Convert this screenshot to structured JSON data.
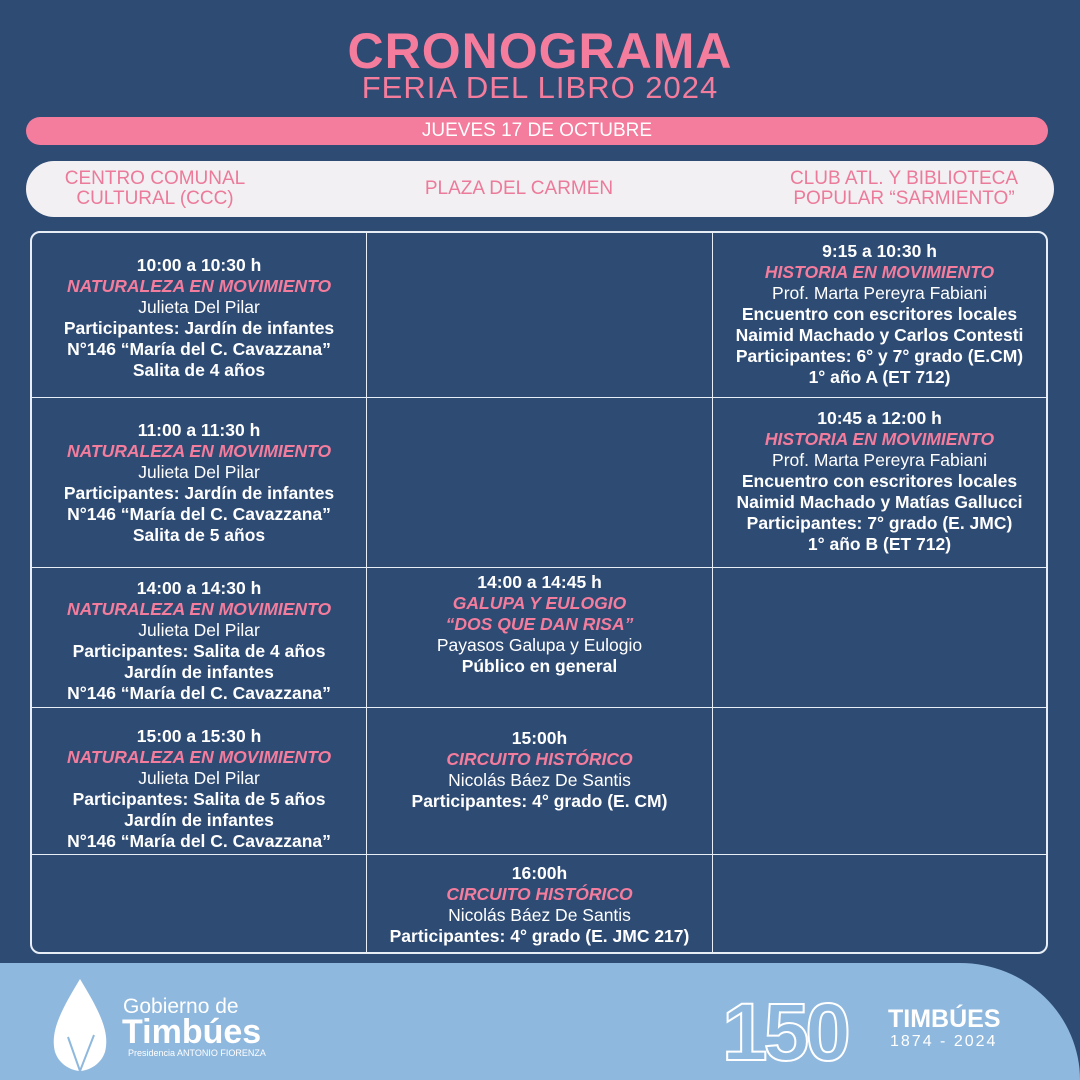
{
  "header": {
    "title": "CRONOGRAMA",
    "subtitle": "FERIA DEL LIBRO 2024",
    "day": "JUEVES 17 DE OCTUBRE"
  },
  "colors": {
    "background": "#2e4b74",
    "accent": "#f47c9c",
    "footer": "#8fb8de"
  },
  "venues": [
    [
      "CENTRO COMUNAL",
      "CULTURAL (CCC)"
    ],
    [
      "PLAZA DEL CARMEN"
    ],
    [
      "CLUB ATL. Y BIBLIOTECA",
      "POPULAR “SARMIENTO”"
    ]
  ],
  "rows": [
    [
      {
        "time": "10:00 a 10:30 h",
        "event": [
          "NATURALEZA EN MOVIMIENTO"
        ],
        "lines": [
          "Julieta Del Pilar"
        ],
        "bold": [
          "Participantes: Jardín de infantes",
          "N°146 “María del C. Cavazzana”",
          "Salita de 4 años"
        ]
      },
      null,
      {
        "time": "9:15 a 10:30 h",
        "event": [
          "HISTORIA EN MOVIMIENTO"
        ],
        "lines": [
          "Prof. Marta Pereyra Fabiani"
        ],
        "bold": [
          "Encuentro con escritores locales",
          "Naimid Machado y Carlos Contesti",
          "Participantes: 6° y 7° grado (E.CM)",
          "1° año A (ET 712)"
        ]
      }
    ],
    [
      {
        "time": "11:00 a 11:30 h",
        "event": [
          "NATURALEZA EN MOVIMIENTO"
        ],
        "lines": [
          "Julieta Del Pilar"
        ],
        "bold": [
          "Participantes: Jardín de infantes",
          "N°146 “María del C. Cavazzana”",
          "Salita de 5 años"
        ]
      },
      null,
      {
        "time": "10:45 a 12:00 h",
        "event": [
          "HISTORIA EN MOVIMIENTO"
        ],
        "lines": [
          "Prof. Marta Pereyra Fabiani"
        ],
        "bold": [
          "Encuentro con escritores locales",
          "Naimid Machado y Matías Gallucci",
          "Participantes: 7° grado (E. JMC)",
          "1° año B (ET 712)"
        ]
      }
    ],
    [
      {
        "time": "14:00 a 14:30 h",
        "event": [
          "NATURALEZA EN MOVIMIENTO"
        ],
        "lines": [
          "Julieta Del Pilar"
        ],
        "bold": [
          "Participantes: Salita de 4 años",
          "Jardín de infantes",
          "N°146 “María del C. Cavazzana”"
        ]
      },
      {
        "time": "14:00 a 14:45 h",
        "event": [
          "GALUPA Y EULOGIO",
          "“DOS QUE DAN RISA”"
        ],
        "lines": [
          "Payasos Galupa y Eulogio"
        ],
        "bold": [
          "Público en general"
        ]
      },
      null
    ],
    [
      {
        "time": "15:00 a 15:30 h",
        "event": [
          "NATURALEZA EN MOVIMIENTO"
        ],
        "lines": [
          "Julieta Del Pilar"
        ],
        "bold": [
          "Participantes: Salita de 5 años",
          "Jardín de infantes",
          "N°146 “María del C. Cavazzana”"
        ]
      },
      {
        "time": "15:00h",
        "event": [
          "CIRCUITO HISTÓRICO"
        ],
        "lines": [
          "Nicolás Báez De Santis"
        ],
        "bold": [
          "Participantes: 4° grado (E. CM)"
        ]
      },
      null
    ],
    [
      null,
      {
        "time": "16:00h",
        "event": [
          "CIRCUITO HISTÓRICO"
        ],
        "lines": [
          "Nicolás Báez De Santis"
        ],
        "bold": [
          "Participantes: 4° grado (E. JMC 217)"
        ]
      },
      null
    ]
  ],
  "footer": {
    "gob": "Gobierno de",
    "timbues": "Timbúes",
    "presidencia": "Presidencia ANTONIO FIORENZA",
    "logo150": "150",
    "anniv_title": "TIMBÚES",
    "anniv_years": "1874 - 2024"
  }
}
